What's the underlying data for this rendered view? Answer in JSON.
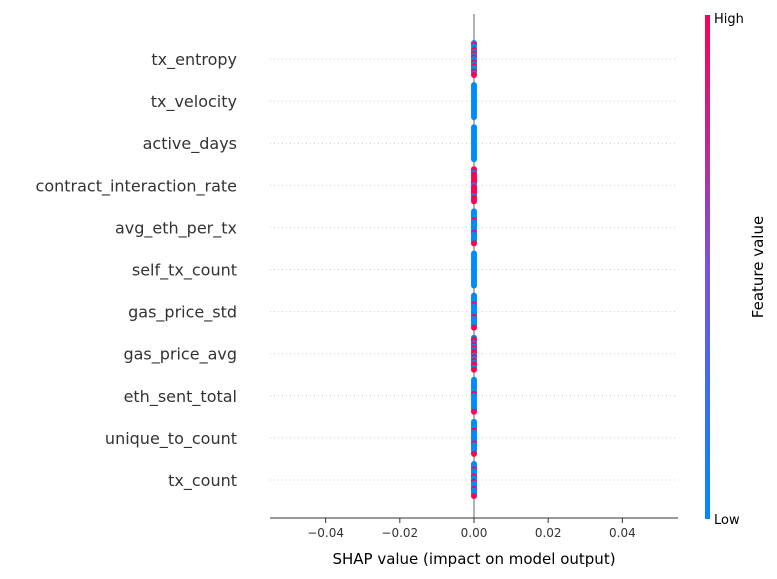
{
  "chart_data": {
    "type": "scatter",
    "title": "",
    "xlabel": "SHAP value (impact on model output)",
    "ylabel": "",
    "xlim": [
      -0.055,
      0.055
    ],
    "xticks": [
      -0.04,
      -0.02,
      0.0,
      0.02,
      0.04
    ],
    "xtick_labels": [
      "−0.04",
      "−0.02",
      "0.00",
      "0.02",
      "0.04"
    ],
    "grid": false,
    "features": [
      {
        "name": "tx_entropy",
        "high_fraction": 0.4
      },
      {
        "name": "tx_velocity",
        "high_fraction": 0.0
      },
      {
        "name": "active_days",
        "high_fraction": 0.0
      },
      {
        "name": "contract_interaction_rate",
        "high_fraction": 0.85
      },
      {
        "name": "avg_eth_per_tx",
        "high_fraction": 0.15
      },
      {
        "name": "self_tx_count",
        "high_fraction": 0.0
      },
      {
        "name": "gas_price_std",
        "high_fraction": 0.15
      },
      {
        "name": "gas_price_avg",
        "high_fraction": 0.6
      },
      {
        "name": "eth_sent_total",
        "high_fraction": 0.1
      },
      {
        "name": "unique_to_count",
        "high_fraction": 0.15
      },
      {
        "name": "tx_count",
        "high_fraction": 0.25
      }
    ],
    "shap_value": 0.0,
    "colorbar": {
      "title": "Feature value",
      "high_label": "High",
      "low_label": "Low",
      "high_color": "#ff0052",
      "low_color": "#008bfb"
    }
  }
}
